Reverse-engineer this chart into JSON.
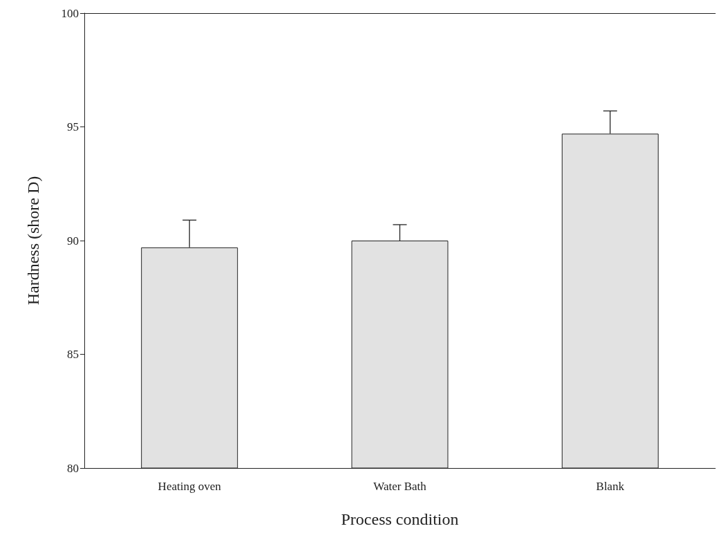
{
  "chart_data": {
    "type": "bar",
    "xlabel": "Process condition",
    "ylabel": "Hardness (shore D)",
    "categories": [
      "Heating oven",
      "Water Bath",
      "Blank"
    ],
    "values": [
      89.7,
      90.0,
      94.7
    ],
    "errors": [
      [
        89.7,
        90.9
      ],
      [
        90.0,
        90.7
      ],
      [
        94.7,
        95.7
      ]
    ],
    "color": "#e2e2e2",
    "ylim": [
      80,
      100
    ],
    "yticks": [
      80,
      85,
      90,
      95,
      100
    ],
    "grid": false
  }
}
